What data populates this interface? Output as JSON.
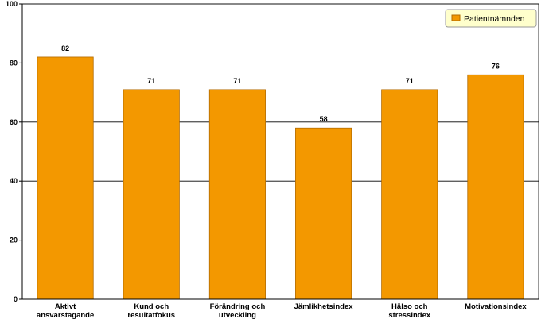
{
  "chart_data": {
    "type": "bar",
    "categories": [
      [
        "Aktivt",
        "ansvarstagande"
      ],
      [
        "Kund och",
        "resultatfokus"
      ],
      [
        "Förändring och",
        "utveckling"
      ],
      [
        "Jämlikhetsindex"
      ],
      [
        "Hälso och",
        "stressindex"
      ],
      [
        "Motivationsindex"
      ]
    ],
    "series": [
      {
        "name": "Patientnämnden",
        "values": [
          82,
          71,
          71,
          58,
          71,
          76
        ]
      }
    ],
    "data_labels": [
      "82",
      "71",
      "71",
      "58",
      "71",
      "76"
    ],
    "ylim": [
      0,
      100
    ],
    "yticks": [
      0,
      20,
      40,
      60,
      80,
      100
    ],
    "grid": true,
    "legend_position": "top-right",
    "colors": {
      "bar": "#f39800",
      "bar_border": "#b36b00",
      "legend_bg": "#ffffcc",
      "plot_bg": "#ffffff",
      "grid": "#000000"
    }
  }
}
